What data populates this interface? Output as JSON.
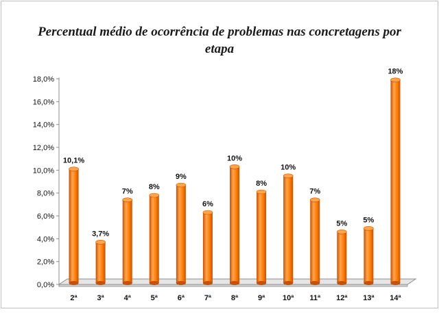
{
  "chart_data": {
    "type": "bar",
    "title": "Percentual médio de ocorrência de problemas nas concretagens por etapa",
    "categories": [
      "2ª",
      "3ª",
      "4ª",
      "5ª",
      "6ª",
      "7ª",
      "8ª",
      "9ª",
      "10ª",
      "11ª",
      "12ª",
      "13ª",
      "14ª"
    ],
    "values": [
      10.1,
      3.7,
      7.4,
      7.8,
      8.7,
      6.3,
      10.3,
      8.1,
      9.5,
      7.4,
      4.6,
      4.9,
      17.9
    ],
    "data_labels": [
      "10,1%",
      "3,7%",
      "7%",
      "8%",
      "9%",
      "6%",
      "10%",
      "8%",
      "10%",
      "7%",
      "5%",
      "5%",
      "18%"
    ],
    "yticks": [
      "0,0%",
      "2,0%",
      "4,0%",
      "6,0%",
      "8,0%",
      "10,0%",
      "12,0%",
      "14,0%",
      "16,0%",
      "18,0%"
    ],
    "ylim": [
      0,
      18
    ],
    "xlabel": "",
    "ylabel": "",
    "legend": "none",
    "grid": false,
    "bar_color": "#ff7a00",
    "bar_dark_color": "#c85000",
    "bar_light_color": "#ffa64d"
  }
}
